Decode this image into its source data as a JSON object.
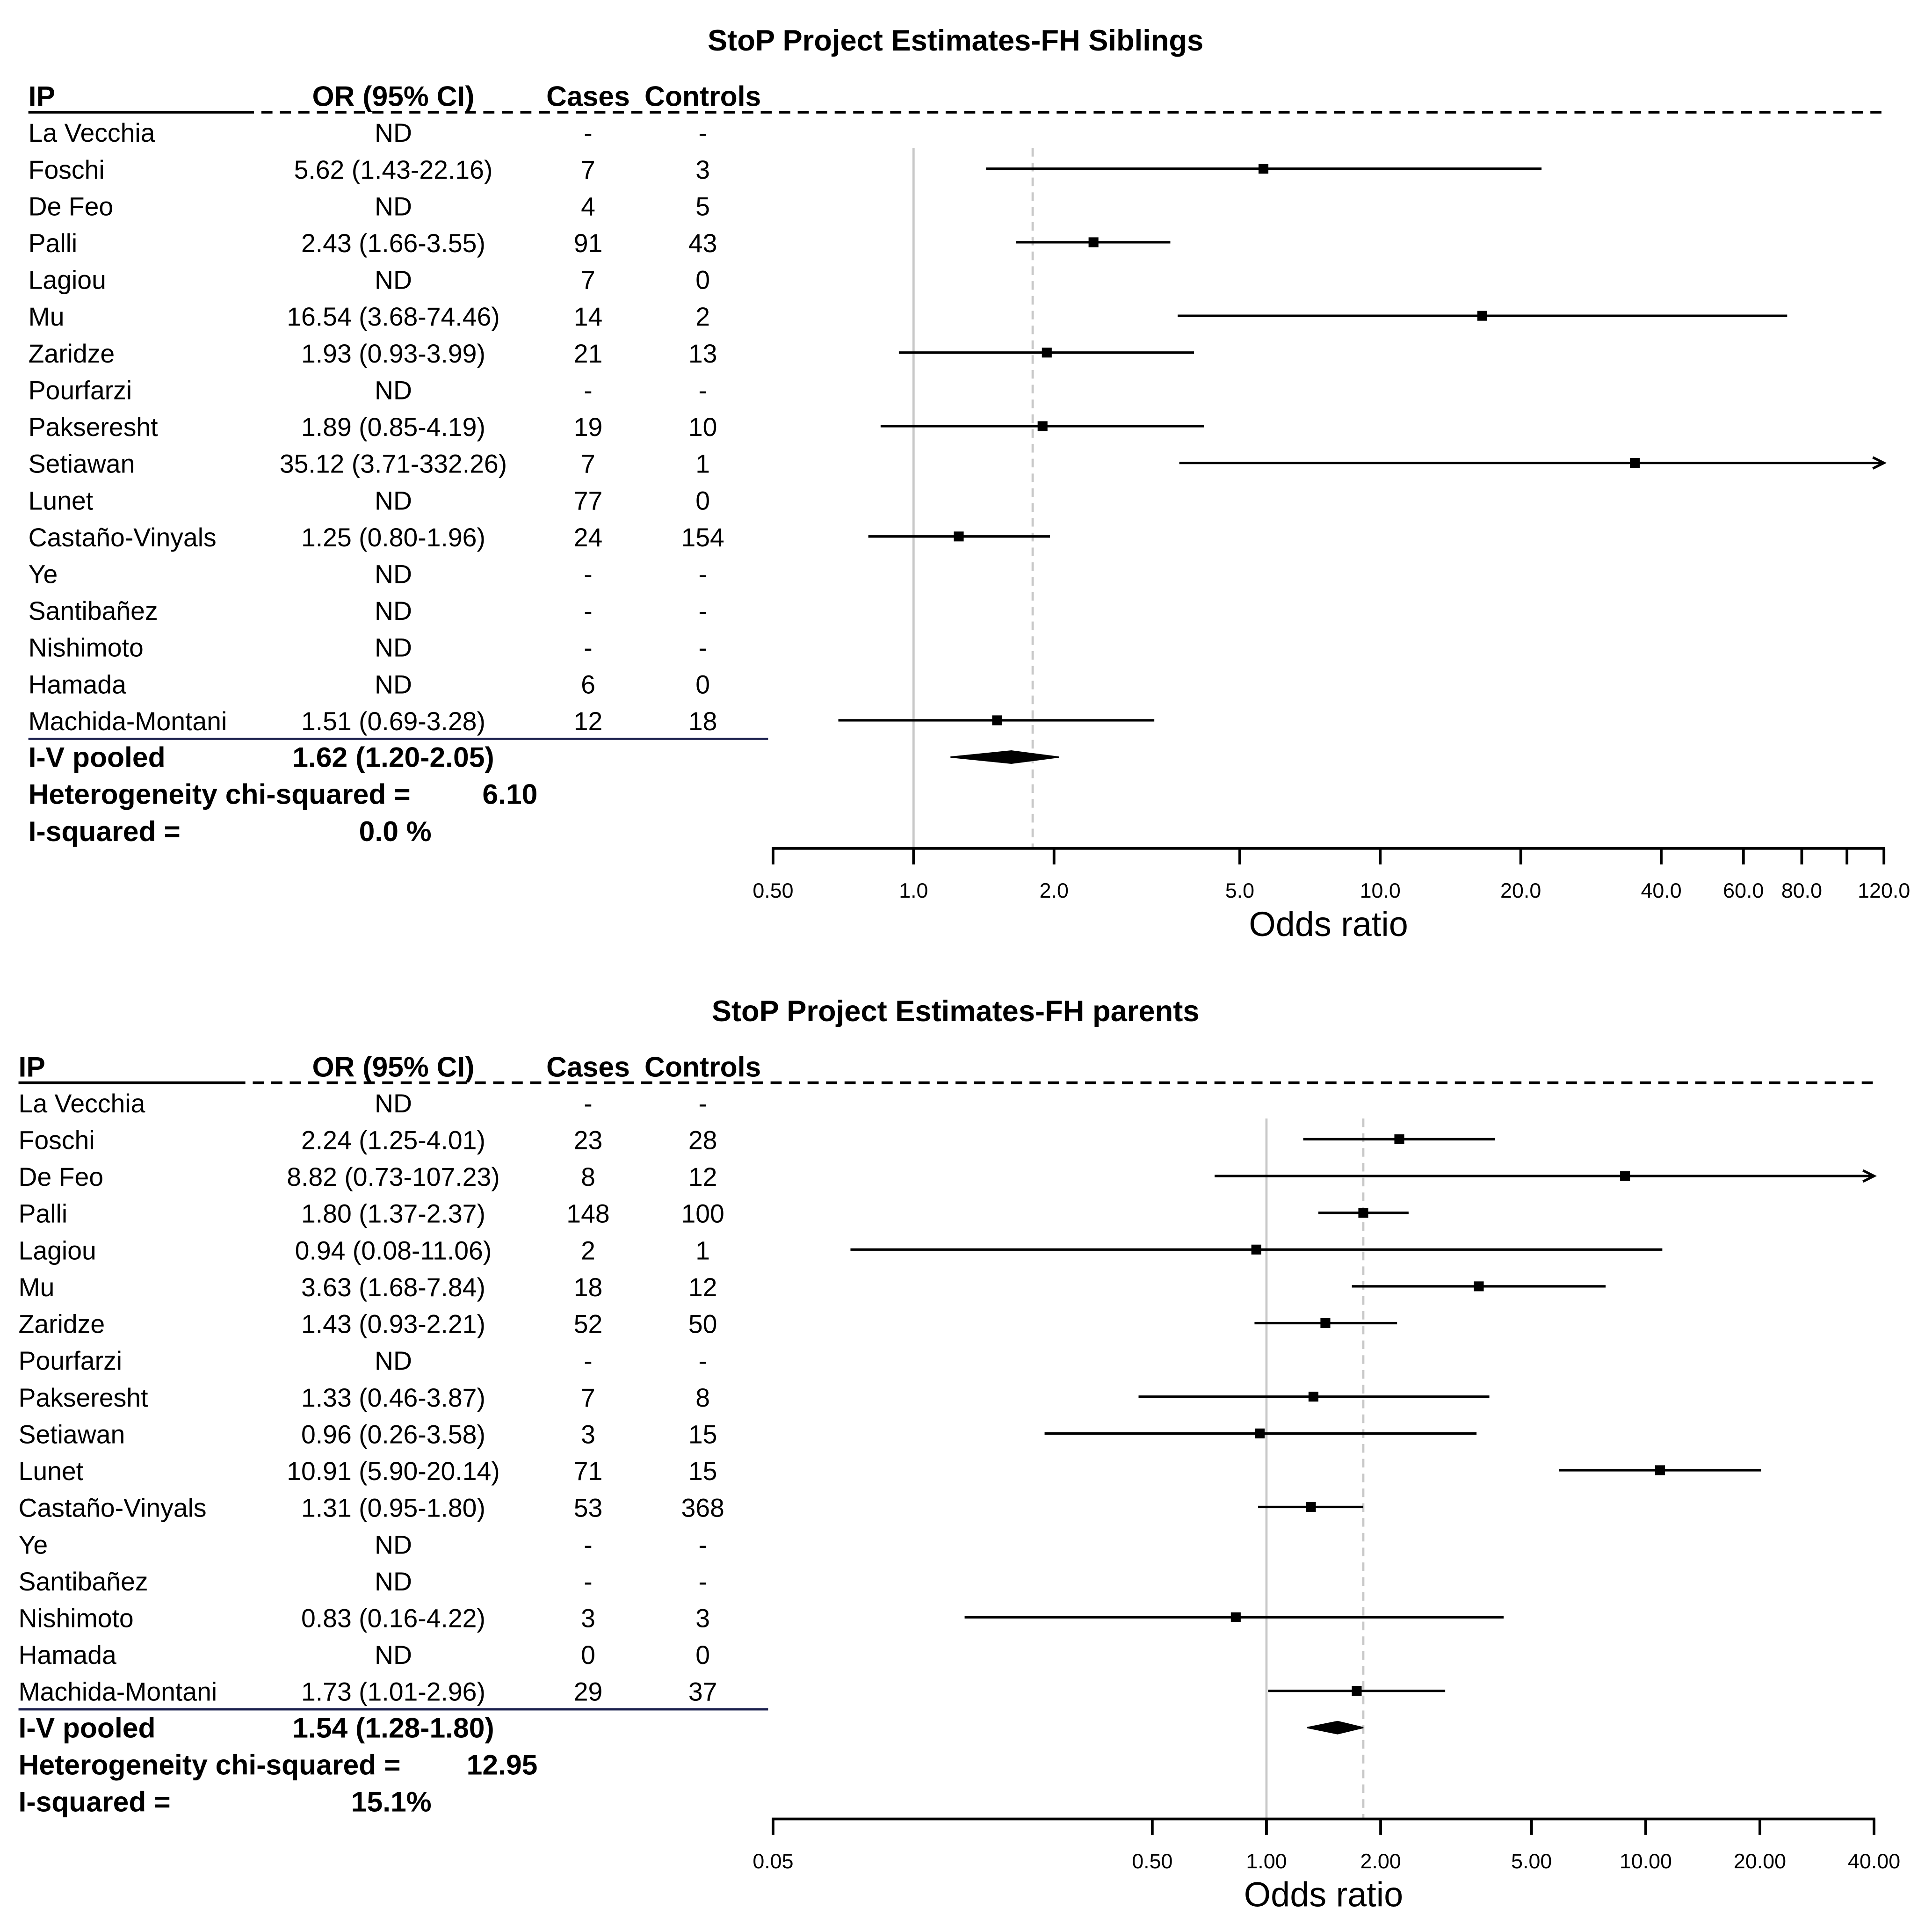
{
  "chart_data": [
    {
      "type": "forest",
      "title": "StoP Project Estimates-FH Siblings",
      "columns": {
        "ip": "IP",
        "or": "OR (95% CI)",
        "cases": "Cases",
        "controls": "Controls"
      },
      "rows": [
        {
          "ip": "La Vecchia",
          "or_text": "ND",
          "cases": "-",
          "controls": "-",
          "or": null,
          "lo": null,
          "hi": null
        },
        {
          "ip": "Foschi",
          "or_text": "5.62 (1.43-22.16)",
          "cases": "7",
          "controls": "3",
          "or": 5.62,
          "lo": 1.43,
          "hi": 22.16
        },
        {
          "ip": "De Feo",
          "or_text": "ND",
          "cases": "4",
          "controls": "5",
          "or": null,
          "lo": null,
          "hi": null
        },
        {
          "ip": "Palli",
          "or_text": "2.43 (1.66-3.55)",
          "cases": "91",
          "controls": "43",
          "or": 2.43,
          "lo": 1.66,
          "hi": 3.55
        },
        {
          "ip": "Lagiou",
          "or_text": "ND",
          "cases": "7",
          "controls": "0",
          "or": null,
          "lo": null,
          "hi": null
        },
        {
          "ip": "Mu",
          "or_text": "16.54 (3.68-74.46)",
          "cases": "14",
          "controls": "2",
          "or": 16.54,
          "lo": 3.68,
          "hi": 74.46
        },
        {
          "ip": "Zaridze",
          "or_text": "1.93 (0.93-3.99)",
          "cases": "21",
          "controls": "13",
          "or": 1.93,
          "lo": 0.93,
          "hi": 3.99
        },
        {
          "ip": "Pourfarzi",
          "or_text": "ND",
          "cases": "-",
          "controls": "-",
          "or": null,
          "lo": null,
          "hi": null
        },
        {
          "ip": "Pakseresht",
          "or_text": "1.89 (0.85-4.19)",
          "cases": "19",
          "controls": "10",
          "or": 1.89,
          "lo": 0.85,
          "hi": 4.19
        },
        {
          "ip": "Setiawan",
          "or_text": "35.12 (3.71-332.26)",
          "cases": "7",
          "controls": "1",
          "or": 35.12,
          "lo": 3.71,
          "hi": 332.26
        },
        {
          "ip": "Lunet",
          "or_text": "ND",
          "cases": "77",
          "controls": "0",
          "or": null,
          "lo": null,
          "hi": null
        },
        {
          "ip": "Castaño-Vinyals",
          "or_text": "1.25 (0.80-1.96)",
          "cases": "24",
          "controls": "154",
          "or": 1.25,
          "lo": 0.8,
          "hi": 1.96
        },
        {
          "ip": "Ye",
          "or_text": "ND",
          "cases": "-",
          "controls": "-",
          "or": null,
          "lo": null,
          "hi": null
        },
        {
          "ip": "Santibañez",
          "or_text": "ND",
          "cases": "-",
          "controls": "-",
          "or": null,
          "lo": null,
          "hi": null
        },
        {
          "ip": "Nishimoto",
          "or_text": "ND",
          "cases": "-",
          "controls": "-",
          "or": null,
          "lo": null,
          "hi": null
        },
        {
          "ip": "Hamada",
          "or_text": "ND",
          "cases": "6",
          "controls": "0",
          "or": null,
          "lo": null,
          "hi": null
        },
        {
          "ip": "Machida-Montani",
          "or_text": "1.51 (0.69-3.28)",
          "cases": "12",
          "controls": "18",
          "or": 1.51,
          "lo": 0.69,
          "hi": 3.28
        }
      ],
      "pooled": {
        "label": "I-V pooled",
        "or_text": "1.62 (1.20-2.05)",
        "or": 1.62,
        "lo": 1.2,
        "hi": 2.05
      },
      "heterogeneity": {
        "label": "Heterogeneity  chi-squared =",
        "value": "6.10"
      },
      "i_squared": {
        "label": "I-squared  =",
        "value": "0.0 %"
      },
      "x_axis": {
        "label": "Odds ratio",
        "scale": "log",
        "range": [
          0.5,
          120
        ],
        "ticks": [
          {
            "v": 0.5,
            "label": "0.50"
          },
          {
            "v": 1,
            "label": "1.0"
          },
          {
            "v": 2,
            "label": "2.0"
          },
          {
            "v": 5,
            "label": "5.0"
          },
          {
            "v": 10,
            "label": "10.0"
          },
          {
            "v": 20,
            "label": "20.0"
          },
          {
            "v": 40,
            "label": "40.0"
          },
          {
            "v": 60,
            "label": "60.0"
          },
          {
            "v": 80,
            "label": "80.0"
          },
          {
            "v": 100,
            "label": ""
          },
          {
            "v": 120,
            "label": "120.0"
          }
        ]
      },
      "null_line": 1,
      "dashed_line": 1.8
    },
    {
      "type": "forest",
      "title": "StoP Project Estimates-FH parents",
      "columns": {
        "ip": "IP",
        "or": "OR (95% CI)",
        "cases": "Cases",
        "controls": "Controls"
      },
      "rows": [
        {
          "ip": "La Vecchia",
          "or_text": "ND",
          "cases": "-",
          "controls": "-",
          "or": null,
          "lo": null,
          "hi": null
        },
        {
          "ip": "Foschi",
          "or_text": "2.24 (1.25-4.01)",
          "cases": "23",
          "controls": "28",
          "or": 2.24,
          "lo": 1.25,
          "hi": 4.01
        },
        {
          "ip": "De Feo",
          "or_text": "8.82 (0.73-107.23)",
          "cases": "8",
          "controls": "12",
          "or": 8.82,
          "lo": 0.73,
          "hi": 107.23
        },
        {
          "ip": "Palli",
          "or_text": "1.80 (1.37-2.37)",
          "cases": "148",
          "controls": "100",
          "or": 1.8,
          "lo": 1.37,
          "hi": 2.37
        },
        {
          "ip": "Lagiou",
          "or_text": "0.94 (0.08-11.06)",
          "cases": "2",
          "controls": "1",
          "or": 0.94,
          "lo": 0.08,
          "hi": 11.06
        },
        {
          "ip": "Mu",
          "or_text": "3.63 (1.68-7.84)",
          "cases": "18",
          "controls": "12",
          "or": 3.63,
          "lo": 1.68,
          "hi": 7.84
        },
        {
          "ip": "Zaridze",
          "or_text": "1.43 (0.93-2.21)",
          "cases": "52",
          "controls": "50",
          "or": 1.43,
          "lo": 0.93,
          "hi": 2.21
        },
        {
          "ip": "Pourfarzi",
          "or_text": "ND",
          "cases": "-",
          "controls": "-",
          "or": null,
          "lo": null,
          "hi": null
        },
        {
          "ip": "Pakseresht",
          "or_text": "1.33 (0.46-3.87)",
          "cases": "7",
          "controls": "8",
          "or": 1.33,
          "lo": 0.46,
          "hi": 3.87
        },
        {
          "ip": "Setiawan",
          "or_text": "0.96 (0.26-3.58)",
          "cases": "3",
          "controls": "15",
          "or": 0.96,
          "lo": 0.26,
          "hi": 3.58
        },
        {
          "ip": "Lunet",
          "or_text": "10.91 (5.90-20.14)",
          "cases": "71",
          "controls": "15",
          "or": 10.91,
          "lo": 5.9,
          "hi": 20.14
        },
        {
          "ip": "Castaño-Vinyals",
          "or_text": "1.31 (0.95-1.80)",
          "cases": "53",
          "controls": "368",
          "or": 1.31,
          "lo": 0.95,
          "hi": 1.8
        },
        {
          "ip": "Ye",
          "or_text": "ND",
          "cases": "-",
          "controls": "-",
          "or": null,
          "lo": null,
          "hi": null
        },
        {
          "ip": "Santibañez",
          "or_text": "ND",
          "cases": "-",
          "controls": "-",
          "or": null,
          "lo": null,
          "hi": null
        },
        {
          "ip": "Nishimoto",
          "or_text": "0.83 (0.16-4.22)",
          "cases": "3",
          "controls": "3",
          "or": 0.83,
          "lo": 0.16,
          "hi": 4.22
        },
        {
          "ip": "Hamada",
          "or_text": "ND",
          "cases": "0",
          "controls": "0",
          "or": null,
          "lo": null,
          "hi": null
        },
        {
          "ip": "Machida-Montani",
          "or_text": "1.73 (1.01-2.96)",
          "cases": "29",
          "controls": "37",
          "or": 1.73,
          "lo": 1.01,
          "hi": 2.96
        }
      ],
      "pooled": {
        "label": "I-V pooled",
        "or_text": "1.54 (1.28-1.80)",
        "or": 1.54,
        "lo": 1.28,
        "hi": 1.8
      },
      "heterogeneity": {
        "label": "Heterogeneity  chi-squared =",
        "value": "12.95"
      },
      "i_squared": {
        "label": "I-squared  =",
        "value": "15.1%"
      },
      "x_axis": {
        "label": "Odds ratio",
        "scale": "log",
        "range": [
          0.05,
          40
        ],
        "ticks": [
          {
            "v": 0.05,
            "label": "0.05"
          },
          {
            "v": 0.5,
            "label": "0.50"
          },
          {
            "v": 1,
            "label": "1.00"
          },
          {
            "v": 2,
            "label": "2.00"
          },
          {
            "v": 5,
            "label": "5.00"
          },
          {
            "v": 10,
            "label": "10.00"
          },
          {
            "v": 20,
            "label": "20.00"
          },
          {
            "v": 40,
            "label": "40.00"
          }
        ]
      },
      "null_line": 1,
      "dashed_line": 1.8
    }
  ]
}
